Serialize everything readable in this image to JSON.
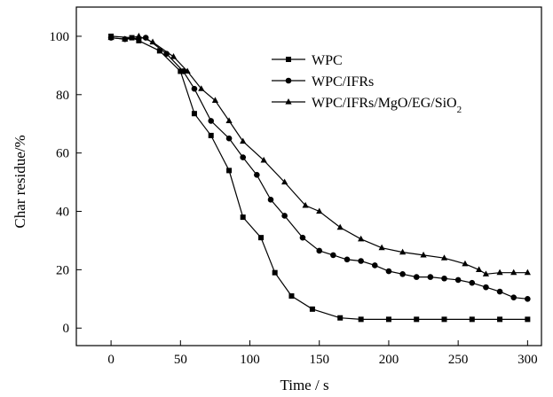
{
  "chart_data": {
    "type": "line",
    "title": "",
    "xlabel": "Time / s",
    "ylabel": "Char residue/%",
    "xlim": [
      -25,
      310
    ],
    "ylim": [
      -6,
      110
    ],
    "xticks": [
      0,
      50,
      100,
      150,
      200,
      250,
      300
    ],
    "yticks": [
      0,
      20,
      40,
      60,
      80,
      100
    ],
    "grid": false,
    "legend_position": "top-right",
    "series": [
      {
        "name": "WPC",
        "marker": "square",
        "color": "#000000",
        "x": [
          0,
          15,
          20,
          35,
          50,
          60,
          72,
          85,
          95,
          108,
          118,
          130,
          145,
          165,
          180,
          200,
          220,
          240,
          260,
          280,
          300
        ],
        "y": [
          100,
          99.5,
          98.5,
          95,
          88,
          73.5,
          66,
          54,
          38,
          31,
          19,
          11,
          6.5,
          3.5,
          3,
          3,
          3,
          3,
          3,
          3,
          3
        ]
      },
      {
        "name": "WPC/IFRs",
        "marker": "circle",
        "color": "#000000",
        "x": [
          0,
          10,
          25,
          40,
          52,
          60,
          72,
          85,
          95,
          105,
          115,
          125,
          138,
          150,
          160,
          170,
          180,
          190,
          200,
          210,
          220,
          230,
          240,
          250,
          260,
          270,
          280,
          290,
          300
        ],
        "y": [
          99.5,
          99,
          99.5,
          94,
          88,
          82,
          71,
          65,
          58.5,
          52.5,
          44,
          38.5,
          31,
          26.5,
          25,
          23.5,
          23,
          21.5,
          19.5,
          18.5,
          17.5,
          17.5,
          17,
          16.5,
          15.5,
          14,
          12.5,
          10.5,
          10
        ]
      },
      {
        "name": "WPC/IFRs/MgO/EG/SiO2",
        "marker": "triangle",
        "color": "#000000",
        "x": [
          0,
          10,
          20,
          30,
          45,
          55,
          65,
          75,
          85,
          95,
          110,
          125,
          140,
          150,
          165,
          180,
          195,
          210,
          225,
          240,
          255,
          265,
          270,
          280,
          290,
          300
        ],
        "y": [
          99.5,
          99,
          100,
          98,
          93,
          88,
          82,
          78,
          71,
          64,
          57.5,
          50,
          42,
          40,
          34.5,
          30.5,
          27.5,
          26,
          25,
          24,
          22,
          20,
          18.5,
          19,
          19,
          19
        ]
      }
    ]
  }
}
